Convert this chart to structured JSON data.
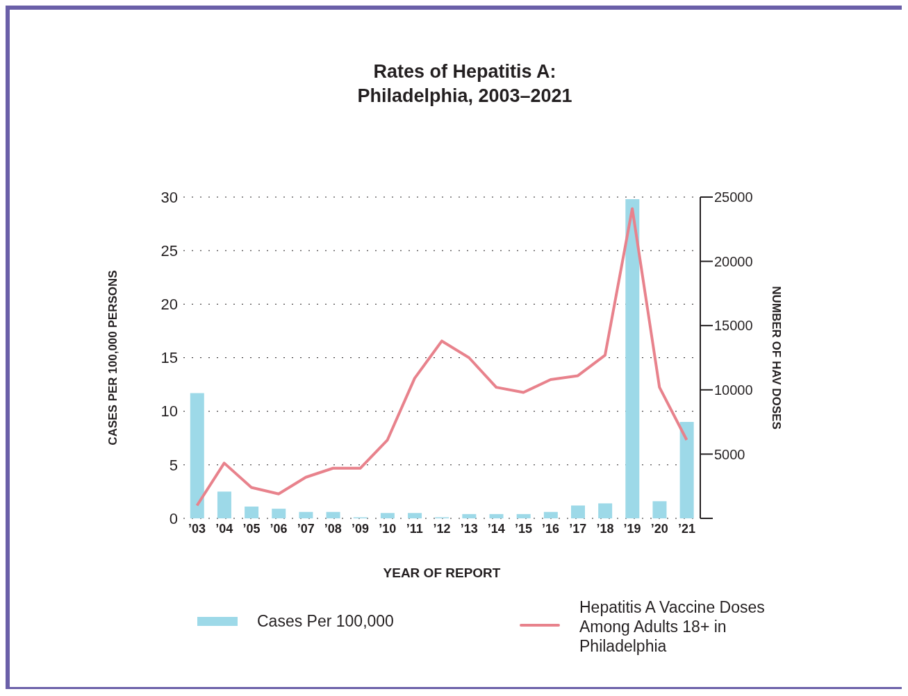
{
  "chart_data": {
    "type": "bar",
    "title": "Rates of Hepatitis A:\nPhiladelphia, 2003–2021",
    "xlabel": "YEAR OF REPORT",
    "ylabel": "CASES PER 100,000 PERSONS",
    "y2label": "NUMBER OF HAV DOSES",
    "categories": [
      "’03",
      "’04",
      "’05",
      "’06",
      "’07",
      "’08",
      "’09",
      "’10",
      "’11",
      "’12",
      "’13",
      "’14",
      "’15",
      "’16",
      "’17",
      "’18",
      "’19",
      "’20",
      "’21"
    ],
    "series": [
      {
        "name": "Cases Per 100,000",
        "color": "#9dd9e8",
        "values": [
          11.7,
          2.5,
          1.1,
          0.9,
          0.6,
          0.6,
          0.1,
          0.5,
          0.5,
          0.1,
          0.4,
          0.4,
          0.4,
          0.6,
          1.2,
          1.4,
          29.8,
          1.6,
          9.0
        ]
      },
      {
        "name": "Hepatitis A Vaccine Doses Among Adults 18+ in Philadelphia",
        "type": "line",
        "axis": "y2",
        "color": "#e8828c",
        "values": [
          1000,
          4300,
          2400,
          1900,
          3200,
          3900,
          3900,
          6100,
          10900,
          13800,
          12500,
          10200,
          9800,
          10800,
          11100,
          12700,
          24100,
          10200,
          6100
        ]
      }
    ],
    "ylim": [
      0,
      30
    ],
    "yticks": [
      0,
      5,
      10,
      15,
      20,
      25,
      30
    ],
    "y2lim": [
      0,
      25000
    ],
    "y2ticks": [
      {
        "value": 0,
        "label": null
      },
      5000,
      10000,
      15000,
      20000,
      25000
    ],
    "grid": "y",
    "legend": "bottom",
    "marker": "none",
    "line_style": "solid"
  }
}
